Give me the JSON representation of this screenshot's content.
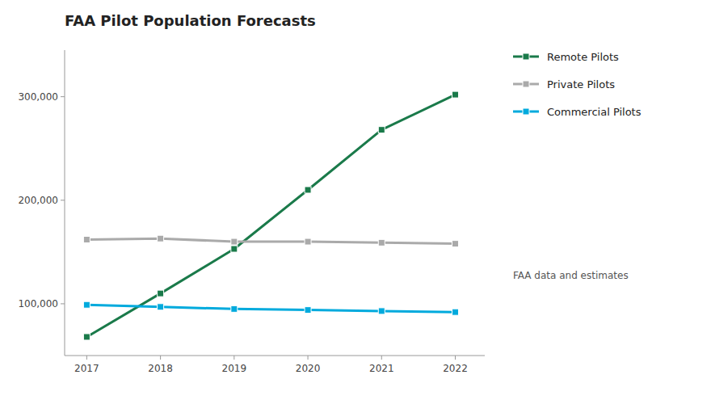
{
  "chart_data": {
    "type": "line",
    "title": "FAA Pilot Population Forecasts",
    "x": [
      2017,
      2018,
      2019,
      2020,
      2021,
      2022
    ],
    "series": [
      {
        "name": "Remote Pilots",
        "color": "#1a7a4a",
        "values": [
          68000,
          110000,
          153000,
          210000,
          268000,
          302000
        ]
      },
      {
        "name": "Private Pilots",
        "color": "#aaaaaa",
        "values": [
          162000,
          163000,
          160000,
          160000,
          159000,
          158000
        ]
      },
      {
        "name": "Commercial Pilots",
        "color": "#00aadd",
        "values": [
          99000,
          97000,
          95000,
          94000,
          93000,
          92000
        ]
      }
    ],
    "xlim": [
      2016.7,
      2022.4
    ],
    "xticks": [
      2017,
      2018,
      2019,
      2020,
      2021,
      2022
    ],
    "ylim": [
      50000,
      345000
    ],
    "yticks": [
      {
        "value": 100000,
        "label": "100,000"
      },
      {
        "value": 200000,
        "label": "200,000"
      },
      {
        "value": 300000,
        "label": "300,000"
      }
    ],
    "marker": "square",
    "grid": false,
    "legend": "right",
    "annotation": "FAA data and estimates"
  }
}
